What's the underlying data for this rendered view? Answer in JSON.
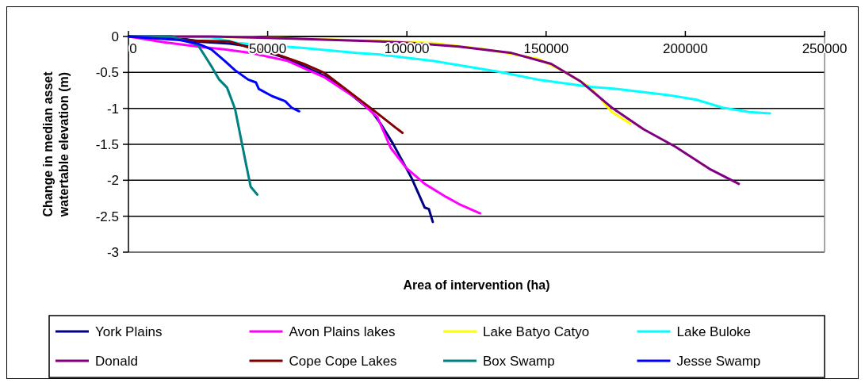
{
  "chart_data": {
    "type": "line",
    "xlabel": "Area of intervention (ha)",
    "ylabel": "Change in median asset watertable elevation (m)",
    "xlim": [
      0,
      250000
    ],
    "xticks": [
      0,
      50000,
      100000,
      150000,
      200000,
      250000
    ],
    "ylim": [
      -3,
      0
    ],
    "yticks": [
      -3,
      -2.5,
      -2,
      -1.5,
      -1,
      -0.5,
      0
    ],
    "grid": "y",
    "legend": "bottom",
    "marker": "none",
    "line_style": "solid",
    "series": [
      {
        "name": "York Plains",
        "color": "#000080",
        "x": [
          0,
          15500,
          25000,
          36400,
          43900,
          57200,
          70500,
          80000,
          87500,
          90350,
          95000,
          101700,
          106400,
          107900,
          109300
        ],
        "values": [
          0,
          0,
          -0.07,
          -0.1,
          -0.14,
          -0.31,
          -0.55,
          -0.81,
          -1.05,
          -1.2,
          -1.49,
          -1.97,
          -2.38,
          -2.4,
          -2.58
        ]
      },
      {
        "name": "Avon Plains lakes",
        "color": "#ff00ff",
        "x": [
          0,
          12700,
          25000,
          34500,
          43900,
          57200,
          70500,
          81900,
          89400,
          94200,
          99800,
          106400,
          114000,
          118700,
          126300
        ],
        "values": [
          0,
          -0.08,
          -0.14,
          -0.18,
          -0.23,
          -0.34,
          -0.57,
          -0.86,
          -1.12,
          -1.55,
          -1.83,
          -2.05,
          -2.23,
          -2.33,
          -2.46
        ]
      },
      {
        "name": "Lake Batyo Catyo",
        "color": "#ffff00",
        "x": [
          0,
          43900,
          96000,
          109300,
          128200,
          147100,
          156600,
          166000,
          173600,
          180200
        ],
        "values": [
          0,
          -0.01,
          -0.07,
          -0.09,
          -0.18,
          -0.31,
          -0.49,
          -0.71,
          -1.05,
          -1.21
        ]
      },
      {
        "name": "Lake Buloke",
        "color": "#00ffff",
        "x": [
          0,
          29800,
          39200,
          62900,
          81900,
          90350,
          109300,
          133000,
          147100,
          166000,
          175600,
          194500,
          204000,
          213400,
          222900,
          230400
        ],
        "values": [
          0,
          -0.01,
          -0.09,
          -0.16,
          -0.23,
          -0.25,
          -0.34,
          -0.49,
          -0.6,
          -0.7,
          -0.73,
          -0.82,
          -0.88,
          -0.99,
          -1.05,
          -1.07
        ]
      },
      {
        "name": "Donald",
        "color": "#800080",
        "x": [
          0,
          30000,
          50000,
          90350,
          101700,
          118700,
          137600,
          151800,
          162200,
          173600,
          185000,
          196300,
          208600,
          219200
        ],
        "values": [
          0,
          0,
          -0.02,
          -0.07,
          -0.09,
          -0.14,
          -0.23,
          -0.38,
          -0.62,
          -0.99,
          -1.29,
          -1.53,
          -1.84,
          -2.05
        ]
      },
      {
        "name": "Cope Cope Lakes",
        "color": "#800000",
        "x": [
          0,
          15500,
          25000,
          36400,
          43900,
          53400,
          62900,
          70500,
          80000,
          87500,
          96000,
          98400
        ],
        "values": [
          0,
          -0.03,
          -0.06,
          -0.07,
          -0.16,
          -0.25,
          -0.38,
          -0.51,
          -0.79,
          -1.01,
          -1.27,
          -1.34
        ]
      },
      {
        "name": "Box Swamp",
        "color": "#008080",
        "x": [
          0,
          15500,
          25000,
          30200,
          32600,
          35400,
          38300,
          40200,
          42100,
          43900,
          46300
        ],
        "values": [
          0,
          0,
          -0.12,
          -0.44,
          -0.6,
          -0.71,
          -1.01,
          -1.38,
          -1.75,
          -2.09,
          -2.2
        ]
      },
      {
        "name": "Jesse Swamp",
        "color": "#0000ff",
        "x": [
          0,
          18400,
          25000,
          29800,
          34600,
          38300,
          43000,
          45800,
          46800,
          51600,
          56300,
          58600,
          61300
        ],
        "values": [
          0,
          -0.05,
          -0.1,
          -0.18,
          -0.34,
          -0.47,
          -0.6,
          -0.64,
          -0.73,
          -0.83,
          -0.9,
          -0.99,
          -1.04
        ]
      }
    ]
  }
}
